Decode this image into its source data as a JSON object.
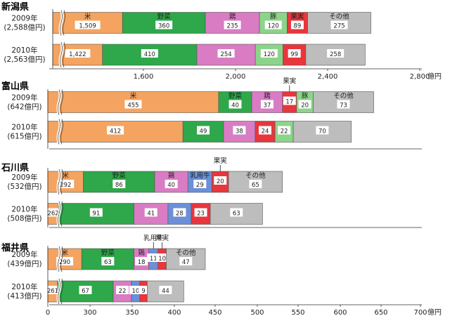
{
  "colors": {
    "米": "#F4A460",
    "野菜": "#2EA84A",
    "鶏": "#D97CC4",
    "豚": "#8CD48A",
    "乳用牛": "#6B8FD8",
    "果実": "#E8363C",
    "その他": "#BDBDBD"
  },
  "chart_data": [
    {
      "type": "bar",
      "orientation": "horizontal",
      "stacked": true,
      "prefecture": "新潟県",
      "axis_ticks": [
        "1,600",
        "2,000",
        "2,400",
        "2,800"
      ],
      "axis_unit": "億円",
      "xlim": [
        1000,
        2800
      ],
      "axis_break": true,
      "rows": [
        {
          "year": "2009年",
          "total": "(2,588億円)",
          "segments": [
            {
              "category": "米",
              "value": 1509,
              "label": "1,509",
              "name_label": "米"
            },
            {
              "category": "野菜",
              "value": 360,
              "label": "360",
              "name_label": "野菜"
            },
            {
              "category": "鶏",
              "value": 235,
              "label": "235",
              "name_label": "鶏"
            },
            {
              "category": "豚",
              "value": 120,
              "label": "120",
              "name_label": "豚"
            },
            {
              "category": "果実",
              "value": 89,
              "label": "89",
              "name_label": "果実"
            },
            {
              "category": "その他",
              "value": 275,
              "label": "275",
              "name_label": "その他"
            }
          ]
        },
        {
          "year": "2010年",
          "total": "(2,563億円)",
          "segments": [
            {
              "category": "米",
              "value": 1422,
              "label": "1,422"
            },
            {
              "category": "野菜",
              "value": 410,
              "label": "410"
            },
            {
              "category": "鶏",
              "value": 254,
              "label": "254"
            },
            {
              "category": "豚",
              "value": 120,
              "label": "120"
            },
            {
              "category": "果実",
              "value": 99,
              "label": "99"
            },
            {
              "category": "その他",
              "value": 258,
              "label": "258"
            }
          ]
        }
      ]
    },
    {
      "type": "bar",
      "orientation": "horizontal",
      "stacked": true,
      "prefecture": "富山県",
      "xlim": [
        0,
        700
      ],
      "axis_break": true,
      "rows": [
        {
          "year": "2009年",
          "total": "(642億円)",
          "segments": [
            {
              "category": "米",
              "value": 455,
              "label": "455",
              "name_label": "米"
            },
            {
              "category": "野菜",
              "value": 40,
              "label": "40",
              "name_label": "野菜"
            },
            {
              "category": "鶏",
              "value": 37,
              "label": "37",
              "name_label": "鶏"
            },
            {
              "category": "果実",
              "value": 17,
              "label": "17",
              "callout": "果実"
            },
            {
              "category": "豚",
              "value": 20,
              "label": "20",
              "name_label": "豚"
            },
            {
              "category": "その他",
              "value": 73,
              "label": "73",
              "name_label": "その他"
            }
          ]
        },
        {
          "year": "2010年",
          "total": "(615億円)",
          "segments": [
            {
              "category": "米",
              "value": 412,
              "label": "412"
            },
            {
              "category": "野菜",
              "value": 49,
              "label": "49"
            },
            {
              "category": "鶏",
              "value": 38,
              "label": "38"
            },
            {
              "category": "果実",
              "value": 24,
              "label": "24"
            },
            {
              "category": "豚",
              "value": 22,
              "label": "22"
            },
            {
              "category": "その他",
              "value": 70,
              "label": "70"
            }
          ]
        }
      ]
    },
    {
      "type": "bar",
      "orientation": "horizontal",
      "stacked": true,
      "prefecture": "石川県",
      "xlim": [
        0,
        700
      ],
      "axis_break": true,
      "rows": [
        {
          "year": "2009年",
          "total": "(532億円)",
          "segments": [
            {
              "category": "米",
              "value": 292,
              "label": "292",
              "name_label": "米"
            },
            {
              "category": "野菜",
              "value": 86,
              "label": "86",
              "name_label": "野菜"
            },
            {
              "category": "鶏",
              "value": 40,
              "label": "40",
              "name_label": "鶏"
            },
            {
              "category": "乳用牛",
              "value": 29,
              "label": "29",
              "name_label": "乳用牛"
            },
            {
              "category": "果実",
              "value": 20,
              "label": "20",
              "callout": "果実"
            },
            {
              "category": "その他",
              "value": 65,
              "label": "65",
              "name_label": "その他"
            }
          ]
        },
        {
          "year": "2010年",
          "total": "(508億円)",
          "segments": [
            {
              "category": "米",
              "value": 262,
              "label": "262"
            },
            {
              "category": "野菜",
              "value": 91,
              "label": "91"
            },
            {
              "category": "鶏",
              "value": 41,
              "label": "41"
            },
            {
              "category": "乳用牛",
              "value": 28,
              "label": "28"
            },
            {
              "category": "果実",
              "value": 23,
              "label": "23"
            },
            {
              "category": "その他",
              "value": 63,
              "label": "63"
            }
          ]
        }
      ]
    },
    {
      "type": "bar",
      "orientation": "horizontal",
      "stacked": true,
      "prefecture": "福井県",
      "axis_ticks": [
        "0",
        "300",
        "350",
        "400",
        "450",
        "500",
        "550",
        "600",
        "650",
        "700"
      ],
      "axis_unit": "億円",
      "xlim": [
        0,
        700
      ],
      "axis_break": true,
      "rows": [
        {
          "year": "2009年",
          "total": "(439億円)",
          "segments": [
            {
              "category": "米",
              "value": 290,
              "label": "290",
              "name_label": "米"
            },
            {
              "category": "野菜",
              "value": 63,
              "label": "63",
              "name_label": "野菜"
            },
            {
              "category": "鶏",
              "value": 18,
              "label": "18",
              "name_label": "鶏"
            },
            {
              "category": "乳用牛",
              "value": 11,
              "label": "11",
              "callout": "乳用牛"
            },
            {
              "category": "果実",
              "value": 10,
              "label": "10",
              "callout": "果実"
            },
            {
              "category": "その他",
              "value": 47,
              "label": "47",
              "name_label": "その他"
            }
          ]
        },
        {
          "year": "2010年",
          "total": "(413億円)",
          "segments": [
            {
              "category": "米",
              "value": 261,
              "label": "261"
            },
            {
              "category": "野菜",
              "value": 67,
              "label": "67"
            },
            {
              "category": "鶏",
              "value": 22,
              "label": "22"
            },
            {
              "category": "乳用牛",
              "value": 10,
              "label": "10"
            },
            {
              "category": "果実",
              "value": 9,
              "label": "9"
            },
            {
              "category": "その他",
              "value": 44,
              "label": "44"
            }
          ]
        }
      ]
    }
  ]
}
